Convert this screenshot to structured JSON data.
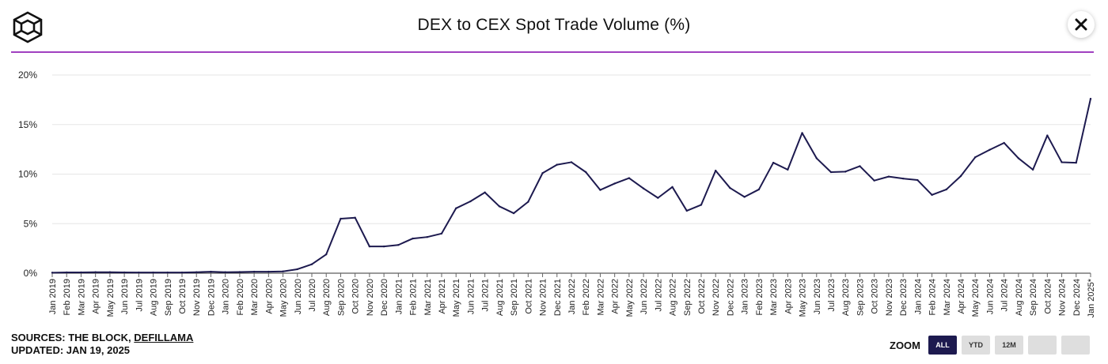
{
  "header": {
    "title": "DEX to CEX Spot Trade Volume (%)",
    "logo_icon": "cube-logo-icon",
    "close_icon": "close-icon"
  },
  "colors": {
    "line": "#1d1a4f",
    "divider": "#a040c0",
    "grid": "#e6e6e6",
    "zoom_active_bg": "#1d1a4f",
    "zoom_inactive_bg": "#dedede"
  },
  "chart_data": {
    "type": "line",
    "title": "DEX to CEX Spot Trade Volume (%)",
    "xlabel": "",
    "ylabel": "",
    "ylim": [
      0,
      20
    ],
    "yticks": [
      "0%",
      "5%",
      "10%",
      "15%",
      "20%"
    ],
    "grid": true,
    "x": [
      "Jan 2019",
      "Feb 2019",
      "Mar 2019",
      "Apr 2019",
      "May 2019",
      "Jun 2019",
      "Jul 2019",
      "Aug 2019",
      "Sep 2019",
      "Oct 2019",
      "Nov 2019",
      "Dec 2019",
      "Jan 2020",
      "Feb 2020",
      "Mar 2020",
      "Apr 2020",
      "May 2020",
      "Jun 2020",
      "Jul 2020",
      "Aug 2020",
      "Sep 2020",
      "Oct 2020",
      "Nov 2020",
      "Dec 2020",
      "Jan 2021",
      "Feb 2021",
      "Mar 2021",
      "Apr 2021",
      "May 2021",
      "Jun 2021",
      "Jul 2021",
      "Aug 2021",
      "Sep 2021",
      "Oct 2021",
      "Nov 2021",
      "Dec 2021",
      "Jan 2022",
      "Feb 2022",
      "Mar 2022",
      "Apr 2022",
      "May 2022",
      "Jun 2022",
      "Jul 2022",
      "Aug 2022",
      "Sep 2022",
      "Oct 2022",
      "Nov 2022",
      "Dec 2022",
      "Jan 2023",
      "Feb 2023",
      "Mar 2023",
      "Apr 2023",
      "May 2023",
      "Jun 2023",
      "Jul 2023",
      "Aug 2023",
      "Sep 2023",
      "Oct 2023",
      "Nov 2023",
      "Dec 2023",
      "Jan 2024",
      "Feb 2024",
      "Mar 2024",
      "Apr 2024",
      "May 2024",
      "Jun 2024",
      "Jul 2024",
      "Aug 2024",
      "Sep 2024",
      "Oct 2024",
      "Nov 2024",
      "Dec 2024",
      "Jan 2025*"
    ],
    "series": [
      {
        "values": [
          0.05,
          0.08,
          0.08,
          0.1,
          0.1,
          0.08,
          0.07,
          0.07,
          0.07,
          0.07,
          0.1,
          0.15,
          0.1,
          0.12,
          0.15,
          0.15,
          0.18,
          0.4,
          0.9,
          1.9,
          5.5,
          5.6,
          2.7,
          2.7,
          2.85,
          3.5,
          3.65,
          4.0,
          6.55,
          7.25,
          8.15,
          6.75,
          6.05,
          7.2,
          10.1,
          10.95,
          11.2,
          10.2,
          8.4,
          9.05,
          9.6,
          8.55,
          7.6,
          8.7,
          6.3,
          6.9,
          10.35,
          8.6,
          7.7,
          8.45,
          11.15,
          10.45,
          14.15,
          11.6,
          10.2,
          10.25,
          10.8,
          9.35,
          9.75,
          9.55,
          9.4,
          7.9,
          8.45,
          9.8,
          11.7,
          12.45,
          13.15,
          11.6,
          10.45,
          13.9,
          11.2,
          11.15,
          17.6
        ]
      }
    ]
  },
  "footer": {
    "sources_label": "SOURCES: THE BLOCK, ",
    "sources_link": "DEFILLAMA",
    "updated": "UPDATED: JAN 19, 2025"
  },
  "zoom": {
    "label": "ZOOM",
    "buttons": [
      {
        "label": "ALL",
        "active": true
      },
      {
        "label": "YTD",
        "active": false
      },
      {
        "label": "12M",
        "active": false
      },
      {
        "label": "",
        "active": false
      },
      {
        "label": "",
        "active": false
      }
    ]
  }
}
